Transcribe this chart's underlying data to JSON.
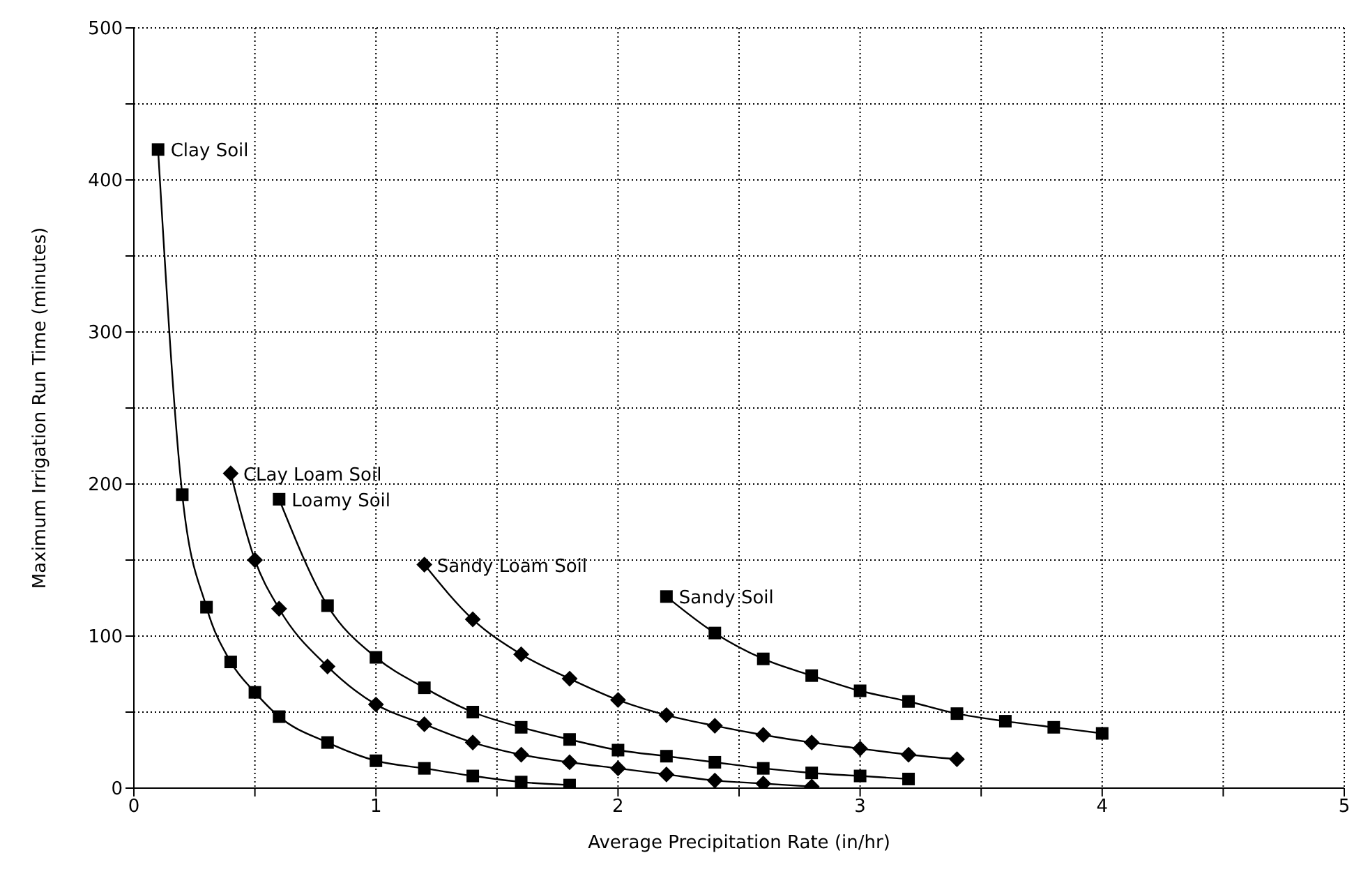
{
  "chart_data": {
    "type": "line",
    "xlabel": "Average Precipitation Rate (in/hr)",
    "ylabel": "Maximum Irrigation Run Time (minutes)",
    "xlim": [
      0,
      5
    ],
    "xticks": [
      0,
      {
        "value": 0.5,
        "label": null
      },
      1,
      {
        "value": 1.5,
        "label": null
      },
      2,
      {
        "value": 2.5,
        "label": null
      },
      3,
      {
        "value": 3.5,
        "label": null
      },
      4,
      {
        "value": 4.5,
        "label": null
      },
      5
    ],
    "ylim": [
      0,
      500
    ],
    "yticks": [
      0,
      {
        "value": 50,
        "label": null
      },
      100,
      {
        "value": 150,
        "label": null
      },
      200,
      {
        "value": 250,
        "label": null
      },
      300,
      {
        "value": 350,
        "label": null
      },
      400,
      {
        "value": 450,
        "label": null
      },
      500
    ],
    "grid": true,
    "legend": false,
    "line_style": "solid",
    "series": [
      {
        "name": "Clay Soil",
        "color": "#000000",
        "marker": "square",
        "x": [
          0.1,
          0.2,
          0.3,
          0.4,
          0.5,
          0.6,
          0.8,
          1.0,
          1.2,
          1.4,
          1.6,
          1.8
        ],
        "values": [
          420,
          193,
          119,
          83,
          63,
          47,
          30,
          18,
          13,
          8,
          4,
          2
        ]
      },
      {
        "name": "CLay Loam Soil",
        "color": "#000000",
        "marker": "diamond",
        "x": [
          0.4,
          0.5,
          0.6,
          0.8,
          1.0,
          1.2,
          1.4,
          1.6,
          1.8,
          2.0,
          2.2,
          2.4,
          2.6,
          2.8
        ],
        "values": [
          207,
          150,
          118,
          80,
          55,
          42,
          30,
          22,
          17,
          13,
          9,
          5,
          3,
          1
        ]
      },
      {
        "name": "Loamy Soil",
        "color": "#000000",
        "marker": "square",
        "x": [
          0.6,
          0.8,
          1.0,
          1.2,
          1.4,
          1.6,
          1.8,
          2.0,
          2.2,
          2.4,
          2.6,
          2.8,
          3.0,
          3.2
        ],
        "values": [
          190,
          120,
          86,
          66,
          50,
          40,
          32,
          25,
          21,
          17,
          13,
          10,
          8,
          6
        ]
      },
      {
        "name": "Sandy Loam Soil",
        "color": "#000000",
        "marker": "diamond",
        "x": [
          1.2,
          1.4,
          1.6,
          1.8,
          2.0,
          2.2,
          2.4,
          2.6,
          2.8,
          3.0,
          3.2,
          3.4
        ],
        "values": [
          147,
          111,
          88,
          72,
          58,
          48,
          41,
          35,
          30,
          26,
          22,
          19
        ]
      },
      {
        "name": "Sandy Soil",
        "color": "#000000",
        "marker": "square",
        "x": [
          2.2,
          2.4,
          2.6,
          2.8,
          3.0,
          3.2,
          3.4,
          3.6,
          3.8,
          4.0
        ],
        "values": [
          126,
          102,
          85,
          74,
          64,
          57,
          49,
          44,
          40,
          36
        ]
      }
    ]
  }
}
